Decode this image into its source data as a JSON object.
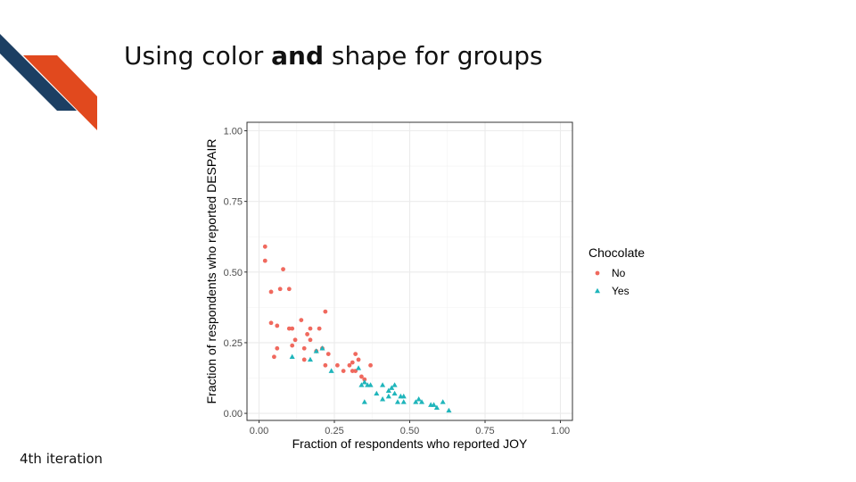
{
  "slide": {
    "title_pre": "Using color ",
    "title_bold": "and",
    "title_post": " shape for groups",
    "footnote": "4th iteration"
  },
  "colors": {
    "navy": "#1c3f63",
    "orange": "#e1491e",
    "no": "#f0695e",
    "yes": "#1fb5bb"
  },
  "chart_data": {
    "type": "scatter",
    "xlabel": "Fraction of respondents who reported JOY",
    "ylabel": "Fraction of respondents who reported DESPAIR",
    "xlim": [
      -0.04,
      1.04
    ],
    "ylim": [
      -0.025,
      1.03
    ],
    "xticks": [
      "0.00",
      "0.25",
      "0.50",
      "0.75",
      "1.00"
    ],
    "yticks": [
      "0.00",
      "0.25",
      "0.50",
      "0.75",
      "1.00"
    ],
    "grid": true,
    "legend": {
      "title": "Chocolate",
      "placement": "right",
      "entries": [
        "No",
        "Yes"
      ]
    },
    "series": [
      {
        "name": "No",
        "marker": "circle",
        "points": [
          [
            0.02,
            0.59
          ],
          [
            0.02,
            0.54
          ],
          [
            0.04,
            0.43
          ],
          [
            0.07,
            0.44
          ],
          [
            0.08,
            0.51
          ],
          [
            0.1,
            0.44
          ],
          [
            0.04,
            0.32
          ],
          [
            0.06,
            0.31
          ],
          [
            0.1,
            0.3
          ],
          [
            0.11,
            0.3
          ],
          [
            0.05,
            0.2
          ],
          [
            0.06,
            0.23
          ],
          [
            0.11,
            0.24
          ],
          [
            0.12,
            0.26
          ],
          [
            0.14,
            0.33
          ],
          [
            0.15,
            0.23
          ],
          [
            0.15,
            0.19
          ],
          [
            0.16,
            0.28
          ],
          [
            0.17,
            0.3
          ],
          [
            0.17,
            0.26
          ],
          [
            0.2,
            0.3
          ],
          [
            0.22,
            0.36
          ],
          [
            0.19,
            0.22
          ],
          [
            0.21,
            0.23
          ],
          [
            0.23,
            0.21
          ],
          [
            0.22,
            0.17
          ],
          [
            0.26,
            0.17
          ],
          [
            0.28,
            0.15
          ],
          [
            0.3,
            0.17
          ],
          [
            0.31,
            0.18
          ],
          [
            0.31,
            0.15
          ],
          [
            0.32,
            0.15
          ],
          [
            0.32,
            0.21
          ],
          [
            0.33,
            0.19
          ],
          [
            0.34,
            0.13
          ],
          [
            0.35,
            0.12
          ],
          [
            0.37,
            0.17
          ]
        ]
      },
      {
        "name": "Yes",
        "marker": "triangle",
        "points": [
          [
            0.11,
            0.2
          ],
          [
            0.17,
            0.19
          ],
          [
            0.19,
            0.22
          ],
          [
            0.21,
            0.23
          ],
          [
            0.24,
            0.15
          ],
          [
            0.33,
            0.16
          ],
          [
            0.34,
            0.1
          ],
          [
            0.35,
            0.11
          ],
          [
            0.36,
            0.1
          ],
          [
            0.37,
            0.1
          ],
          [
            0.35,
            0.04
          ],
          [
            0.39,
            0.07
          ],
          [
            0.41,
            0.1
          ],
          [
            0.41,
            0.05
          ],
          [
            0.43,
            0.06
          ],
          [
            0.43,
            0.08
          ],
          [
            0.44,
            0.09
          ],
          [
            0.45,
            0.1
          ],
          [
            0.45,
            0.07
          ],
          [
            0.46,
            0.04
          ],
          [
            0.47,
            0.06
          ],
          [
            0.48,
            0.06
          ],
          [
            0.48,
            0.04
          ],
          [
            0.52,
            0.04
          ],
          [
            0.53,
            0.05
          ],
          [
            0.54,
            0.04
          ],
          [
            0.57,
            0.03
          ],
          [
            0.58,
            0.03
          ],
          [
            0.59,
            0.02
          ],
          [
            0.61,
            0.04
          ],
          [
            0.63,
            0.01
          ]
        ]
      }
    ]
  }
}
